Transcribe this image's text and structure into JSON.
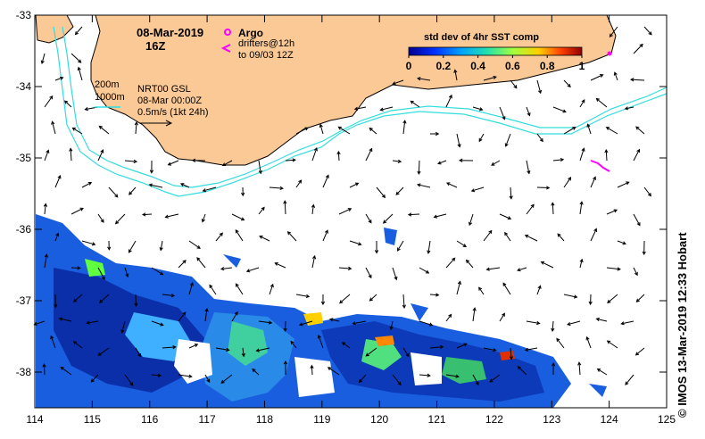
{
  "title": {
    "date": "08-Mar-2019",
    "hour": "16Z"
  },
  "legend_argo": {
    "argo_label": "Argo",
    "drifters_line1": "drifters@12h",
    "drifters_line2": "to 09/03 12Z",
    "argo_color": "#ff00ff"
  },
  "isobaths": {
    "label_200": "200m",
    "label_1000": "1000m",
    "color": "#33dddd"
  },
  "model_info": {
    "line1": "NRT00 GSL",
    "line2": "08-Mar 00:00Z",
    "line3": "0.5m/s (1kt 24h)"
  },
  "colorbar": {
    "title": "std dev of 4hr SST comp",
    "ticks": [
      "0",
      "0.2",
      "0.4",
      "0.6",
      "0.8",
      "1"
    ],
    "range": [
      0,
      1
    ]
  },
  "axes": {
    "x_ticks": [
      "114",
      "115",
      "116",
      "117",
      "118",
      "119",
      "120",
      "121",
      "122",
      "123",
      "124",
      "125"
    ],
    "y_ticks": [
      "-33",
      "-34",
      "-35",
      "-36",
      "-37",
      "-38"
    ],
    "lon_range": [
      114,
      125
    ],
    "lat_range": [
      -38.5,
      -33
    ]
  },
  "credit": "© IMOS 13-Mar-2019 12:33 Hobart",
  "colors": {
    "land": "#fbc995",
    "frame": "#000000"
  }
}
